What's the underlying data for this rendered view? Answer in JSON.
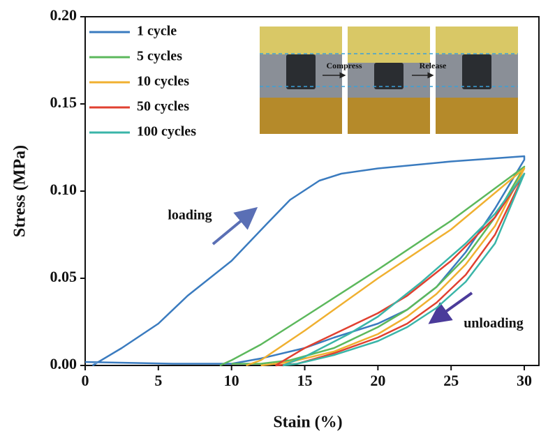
{
  "chart_data": {
    "type": "line",
    "xlabel": "Stain (%)",
    "ylabel": "Stress (MPa)",
    "xlim": [
      0,
      31
    ],
    "ylim": [
      0,
      0.2
    ],
    "xticks": [
      0,
      5,
      10,
      15,
      20,
      25,
      30
    ],
    "yticks": [
      {
        "value": 0,
        "label": "0.00"
      },
      {
        "value": 0.05,
        "label": "0.05"
      },
      {
        "value": 0.1,
        "label": "0.10"
      },
      {
        "value": 0.15,
        "label": "0.15"
      },
      {
        "value": 0.2,
        "label": "0.20"
      }
    ],
    "legend": "upper left",
    "annotations": [
      "loading",
      "unloading"
    ],
    "inset_labels": [
      "Compress",
      "Release"
    ],
    "series": [
      {
        "name": "1 cycle",
        "color": "#3a7bbf",
        "x": [
          0.5,
          2.5,
          5,
          7,
          10,
          12.5,
          14,
          16,
          17.5,
          20,
          25,
          30,
          30,
          28,
          26,
          24,
          22,
          20,
          17,
          15,
          12,
          10,
          6,
          0
        ],
        "values": [
          0,
          0.01,
          0.024,
          0.04,
          0.06,
          0.082,
          0.095,
          0.106,
          0.11,
          0.113,
          0.117,
          0.12,
          0.118,
          0.09,
          0.065,
          0.045,
          0.032,
          0.024,
          0.016,
          0.01,
          0.004,
          0.001,
          0.001,
          0.002
        ]
      },
      {
        "name": "5 cycles",
        "color": "#5cb85c",
        "x": [
          9.2,
          10,
          12,
          15,
          20,
          25,
          30,
          28,
          26,
          24,
          22,
          20,
          17,
          14,
          12,
          10
        ],
        "values": [
          0,
          0.003,
          0.012,
          0.028,
          0.055,
          0.083,
          0.114,
          0.085,
          0.062,
          0.045,
          0.032,
          0.022,
          0.01,
          0.003,
          0.001,
          0.001
        ]
      },
      {
        "name": "10 cycles",
        "color": "#f0b030",
        "x": [
          11,
          12,
          15,
          20,
          25,
          30,
          28,
          26,
          24,
          22,
          20,
          17,
          14,
          12
        ],
        "values": [
          0,
          0.003,
          0.02,
          0.05,
          0.078,
          0.113,
          0.08,
          0.058,
          0.041,
          0.028,
          0.018,
          0.008,
          0.002,
          0
        ]
      },
      {
        "name": "50 cycles",
        "color": "#e04030",
        "x": [
          13,
          15,
          18,
          20,
          22,
          25,
          28,
          30,
          28,
          26,
          24,
          22,
          20,
          17,
          14.5,
          13
        ],
        "values": [
          0,
          0.01,
          0.022,
          0.03,
          0.04,
          0.06,
          0.085,
          0.11,
          0.075,
          0.052,
          0.036,
          0.024,
          0.016,
          0.007,
          0.001,
          0
        ]
      },
      {
        "name": "100 cycles",
        "color": "#3ab5a8",
        "x": [
          13.5,
          15,
          18,
          20,
          23,
          26,
          28,
          30,
          28,
          26,
          24,
          22,
          20,
          17,
          14.5,
          13.5
        ],
        "values": [
          0,
          0.005,
          0.018,
          0.028,
          0.048,
          0.07,
          0.087,
          0.11,
          0.07,
          0.048,
          0.033,
          0.022,
          0.014,
          0.006,
          0.001,
          0
        ]
      }
    ]
  }
}
